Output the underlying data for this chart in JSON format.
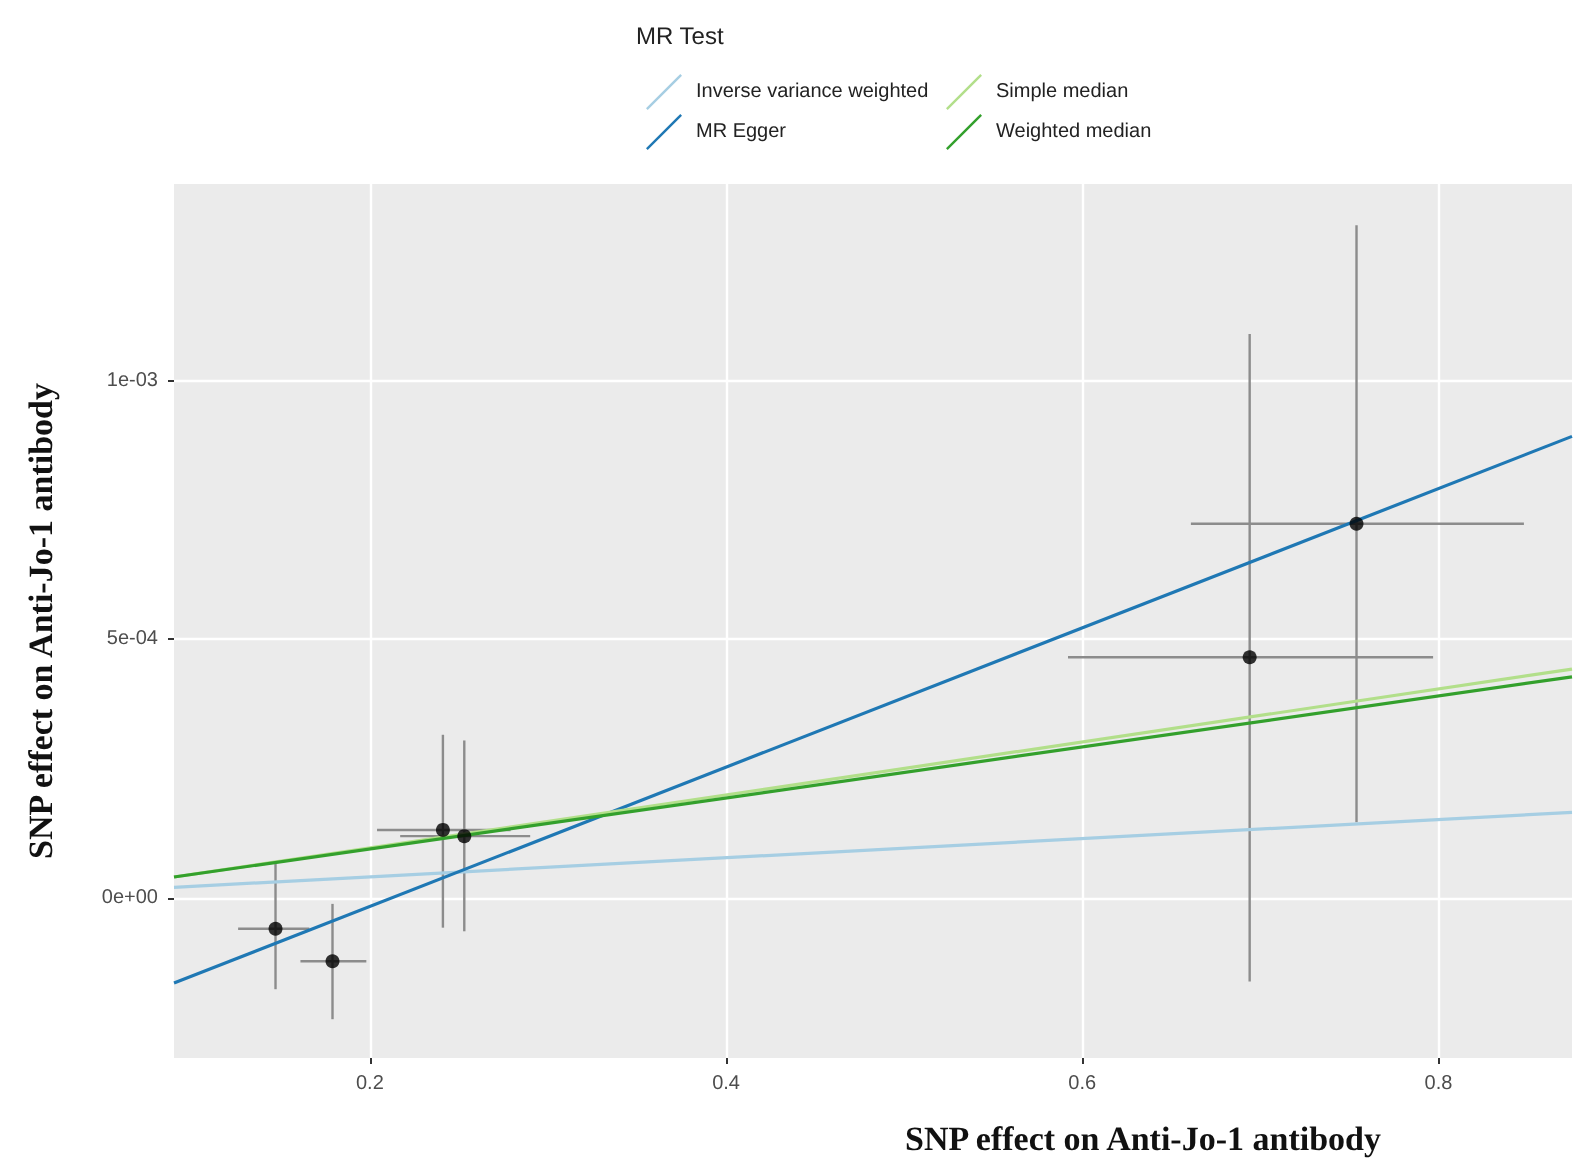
{
  "chart_data": {
    "type": "scatter",
    "xlabel": "SNP effect on Anti-Jo-1 antibody",
    "ylabel": "SNP effect on Anti-Jo-1 antibody",
    "legend_title": "MR Test",
    "legend": "top",
    "grid": true,
    "xlim": [
      0.09,
      0.875
    ],
    "xticks": [
      0.2,
      0.4,
      0.6,
      0.8
    ],
    "ylim": [
      -0.00031,
      0.00138
    ],
    "yticks": [
      {
        "value": 0,
        "label": "0e+00"
      },
      {
        "value": 0.0005,
        "label": "5e-04"
      },
      {
        "value": 0.001,
        "label": "1e-03"
      }
    ],
    "series": [
      {
        "marker": "circle",
        "color": "#000000",
        "x": [
          0.147,
          0.179,
          0.241,
          0.253,
          0.694,
          0.754
        ],
        "values": [
          -6e-05,
          -0.000123,
          0.000131,
          0.000119,
          0.000465,
          0.000723
        ],
        "errors": [
          [
            -0.000177,
            6.5e-05
          ],
          [
            -0.000235,
            -1.2e-05
          ],
          [
            -5.8e-05,
            0.000315
          ],
          [
            -6.5e-05,
            0.000304
          ],
          [
            -0.000162,
            0.00109
          ],
          [
            0.000146,
            0.0013
          ]
        ],
        "xerrors": [
          [
            0.126,
            0.166
          ],
          [
            0.161,
            0.198
          ],
          [
            0.204,
            0.279
          ],
          [
            0.217,
            0.29
          ],
          [
            0.592,
            0.797
          ],
          [
            0.661,
            0.848
          ]
        ]
      },
      {
        "type": "line",
        "marker": "none",
        "name": "Inverse variance weighted",
        "color": "#a6cee3",
        "x": [
          0.09,
          0.875
        ],
        "values": [
          2e-05,
          0.000165
        ]
      },
      {
        "type": "line",
        "marker": "none",
        "name": "MR Egger",
        "color": "#1f78b4",
        "x": [
          0.09,
          0.875
        ],
        "values": [
          -0.000165,
          0.000892
        ]
      },
      {
        "type": "line",
        "marker": "none",
        "name": "Simple median",
        "color": "#b2df8a",
        "x": [
          0.09,
          0.875
        ],
        "values": [
          4e-05,
          0.000442
        ]
      },
      {
        "type": "line",
        "marker": "none",
        "name": "Weighted median",
        "color": "#33a02c",
        "x": [
          0.09,
          0.875
        ],
        "values": [
          4e-05,
          0.000427
        ]
      }
    ]
  }
}
